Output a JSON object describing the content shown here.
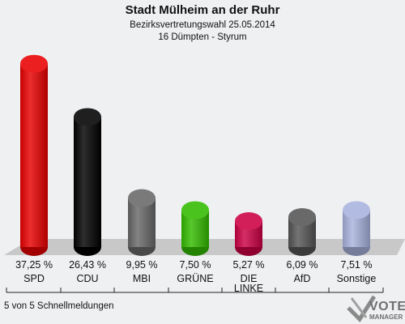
{
  "header": {
    "title": "Stadt Mülheim an der Ruhr",
    "subtitle": "Bezirksvertretungswahl 25.05.2014",
    "district": "16 Dümpten - Styrum"
  },
  "footer": {
    "status": "5 von 5 Schnellmeldungen"
  },
  "logo": {
    "line1": "VOTE",
    "line2": "MANAGER",
    "icon": "checkmark-x-icon"
  },
  "chart_data": {
    "type": "bar",
    "categories": [
      "SPD",
      "CDU",
      "MBI",
      "GRÜNE",
      "DIE LINKE",
      "AfD",
      "Sonstige"
    ],
    "category_lines": [
      [
        "SPD"
      ],
      [
        "CDU"
      ],
      [
        "MBI"
      ],
      [
        "GRÜNE"
      ],
      [
        "DIE",
        "LINKE"
      ],
      [
        "AfD"
      ],
      [
        "Sonstige"
      ]
    ],
    "values": [
      37.25,
      26.43,
      9.95,
      7.5,
      5.27,
      6.09,
      7.51
    ],
    "value_labels": [
      "37,25 %",
      "26,43 %",
      "9,95 %",
      "7,50 %",
      "5,27 %",
      "6,09 %",
      "7,51 %"
    ],
    "colors": [
      "#e80000",
      "#000000",
      "#686868",
      "#33bb00",
      "#cc0044",
      "#555555",
      "#a8b2dd"
    ],
    "ylim": [
      0,
      40
    ]
  }
}
